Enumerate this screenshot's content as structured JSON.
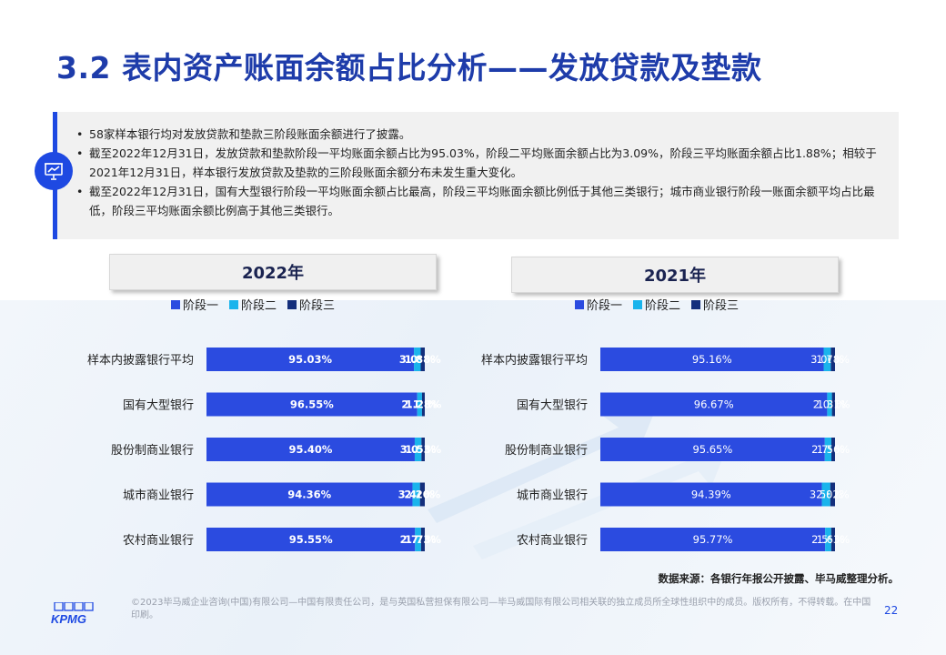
{
  "title": "3.2 表内资产账面余额占比分析——发放贷款及垫款",
  "summary": [
    "58家样本银行均对发放贷款和垫款三阶段账面余额进行了披露。",
    "截至2022年12月31日，发放贷款和垫款阶段一平均账面余额占比为95.03%，阶段二平均账面余额占比为3.09%，阶段三平均账面余额占比1.88%；相较于2021年12月31日，样本银行发放贷款及垫款的三阶段账面余额分布未发生重大变化。",
    "截至2022年12月31日，国有大型银行阶段一平均账面余额占比最高，阶段三平均账面余额比例低于其他三类银行；城市商业银行阶段一账面余额平均占比最低，阶段三平均账面余额比例高于其他三类银行。"
  ],
  "legend": [
    "阶段一",
    "阶段二",
    "阶段三"
  ],
  "colors": {
    "stage1": "#2b4be0",
    "stage2": "#1ab4ec",
    "stage3": "#142f7c",
    "title": "#1e3caa"
  },
  "chart_data": [
    {
      "type": "bar",
      "title": "2022年",
      "orientation": "horizontal-stacked",
      "categories": [
        "样本内披露银行平均",
        "国有大型银行",
        "股份制商业银行",
        "城市商业银行",
        "农村商业银行"
      ],
      "series": [
        {
          "name": "阶段一",
          "values": [
            95.03,
            96.55,
            95.4,
            94.36,
            95.55
          ],
          "labels": [
            "95.03%",
            "96.55%",
            "95.40%",
            "94.36%",
            "95.55%"
          ]
        },
        {
          "name": "阶段二",
          "values": [
            3.09,
            2.17,
            3.07,
            3.44,
            2.73
          ],
          "labels": [
            "3.09%",
            "2.17%",
            "3.07%",
            "3.44%",
            "2.73%"
          ]
        },
        {
          "name": "阶段三",
          "values": [
            1.88,
            1.28,
            1.53,
            2.2,
            1.73
          ],
          "labels": [
            "1.88%",
            "1.28%",
            "1.53%",
            "2.20%",
            "1.73%"
          ]
        }
      ]
    },
    {
      "type": "bar",
      "title": "2021年",
      "orientation": "horizontal-stacked",
      "categories": [
        "样本内披露银行平均",
        "国有大型银行",
        "股份制商业银行",
        "城市商业银行",
        "农村商业银行"
      ],
      "series": [
        {
          "name": "阶段一",
          "values": [
            95.16,
            96.67,
            95.65,
            94.39,
            95.77
          ],
          "labels": [
            "95.16%",
            "96.67%",
            "95.65%",
            "94.39%",
            "95.77%"
          ]
        },
        {
          "name": "阶段二",
          "values": [
            3.06,
            2.02,
            2.79,
            3.58,
            2.59
          ],
          "labels": [
            "3.06%",
            "2.02%",
            "2.79%",
            "3.58%",
            "2.59%"
          ]
        },
        {
          "name": "阶段三",
          "values": [
            1.78,
            1.31,
            1.56,
            2.02,
            1.63
          ],
          "labels": [
            "1.78%",
            "1.31%",
            "1.56%",
            "2.02%",
            "1.63%"
          ]
        }
      ]
    }
  ],
  "source": "数据来源：各银行年报公开披露、毕马威整理分析。",
  "footer": {
    "logo_text": "KPMG",
    "copyright": "©2023毕马威企业咨询(中国)有限公司—中国有限责任公司，是与英国私营担保有限公司—毕马威国际有限公司相关联的独立成员所全球性组织中的成员。版权所有，不得转载。在中国印刷。",
    "page_number": "22"
  },
  "icons": {
    "summary": "presentation-board-icon"
  }
}
